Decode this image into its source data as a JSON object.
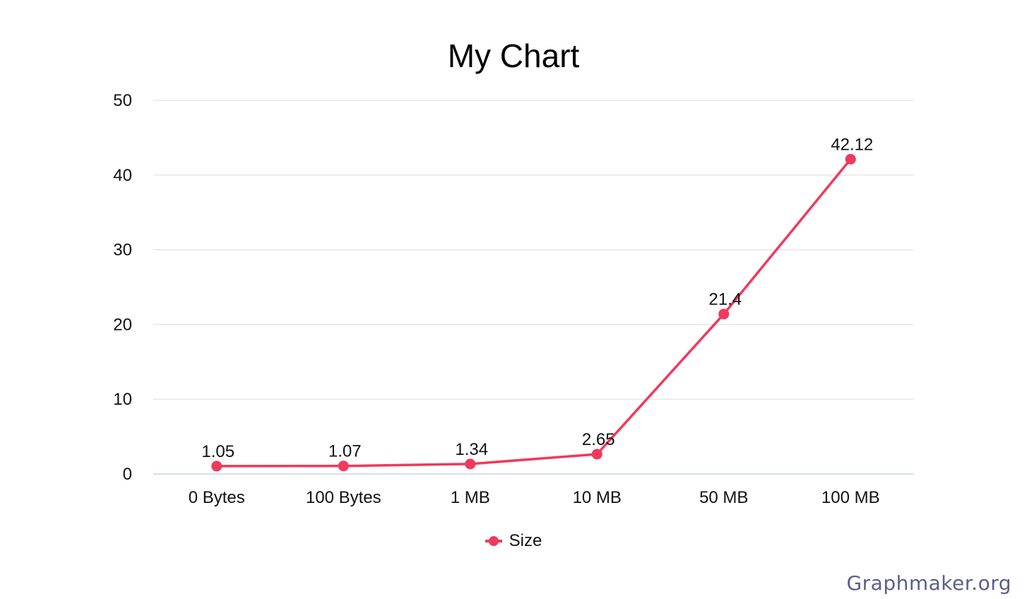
{
  "chart_data": {
    "type": "line",
    "title": "My Chart",
    "categories": [
      "0 Bytes",
      "100 Bytes",
      "1 MB",
      "10 MB",
      "50 MB",
      "100 MB"
    ],
    "series": [
      {
        "name": "Size",
        "values": [
          1.05,
          1.07,
          1.34,
          2.65,
          21.4,
          42.12
        ],
        "labels": [
          "1.05",
          "1.07",
          "1.34",
          "2.65",
          "21.4",
          "42.12"
        ],
        "color": "#f0395c"
      }
    ],
    "y_ticks": [
      "0",
      "10",
      "20",
      "30",
      "40",
      "50"
    ],
    "ylim": [
      0,
      50
    ],
    "grid": true,
    "legend_position": "bottom"
  },
  "colors": {
    "gridline": "#e2e2e2",
    "baseline": "#c8d3e8",
    "watermark": "#5b5f88"
  },
  "watermark": "Graphmaker.org"
}
